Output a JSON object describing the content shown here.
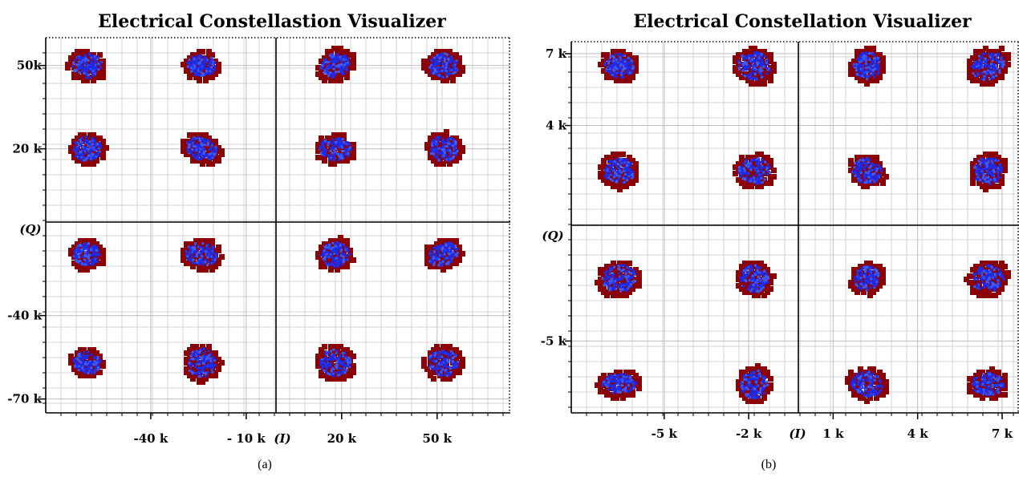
{
  "chart_data": [
    {
      "type": "scatter",
      "title": "Electrical Constellastion Visualizer",
      "caption": "(a)",
      "xlabel": "(I)",
      "ylabel": "(Q)",
      "x_ticks": [
        {
          "label": "-40 k",
          "value": -40000
        },
        {
          "label": "- 10 k",
          "value": -10000
        },
        {
          "label": "20 k",
          "value": 20000
        },
        {
          "label": "50 k",
          "value": 50000
        }
      ],
      "y_ticks": [
        {
          "label": "50k",
          "value": 50000
        },
        {
          "label": "20 k",
          "value": 20000
        },
        {
          "label": "-40 k",
          "value": -40000
        },
        {
          "label": "-70 k",
          "value": -70000
        }
      ],
      "xlim": [
        -73000,
        73000
      ],
      "ylim": [
        -75000,
        60000
      ],
      "grid": true,
      "symbol_x": [
        -60000,
        -24000,
        18000,
        52000
      ],
      "symbol_y": [
        50000,
        20000,
        -18000,
        -57000
      ],
      "point_color": "#1a2cf0",
      "outline_color": "#8b0000"
    },
    {
      "type": "scatter",
      "title": "Electrical Constellation Visualizer",
      "caption": "(b)",
      "xlabel": "(I)",
      "ylabel": "(Q)",
      "x_ticks": [
        {
          "label": "-5 k",
          "value": -5000
        },
        {
          "label": "-2 k",
          "value": -2000
        },
        {
          "label": "1 k",
          "value": 1000
        },
        {
          "label": "4 k",
          "value": 4000
        },
        {
          "label": "7 k",
          "value": 7000
        }
      ],
      "y_ticks": [
        {
          "label": "7 k",
          "value": 7000
        },
        {
          "label": "4 k",
          "value": 4000
        },
        {
          "label": "-5 k",
          "value": -5000
        }
      ],
      "xlim": [
        -8300,
        7600
      ],
      "ylim": [
        -8000,
        7500
      ],
      "grid": true,
      "symbol_x": [
        -6600,
        -1800,
        2200,
        6500
      ],
      "symbol_y": [
        6500,
        2100,
        -2400,
        -6800
      ],
      "point_color": "#1a2cf0",
      "outline_color": "#8b0000"
    }
  ]
}
